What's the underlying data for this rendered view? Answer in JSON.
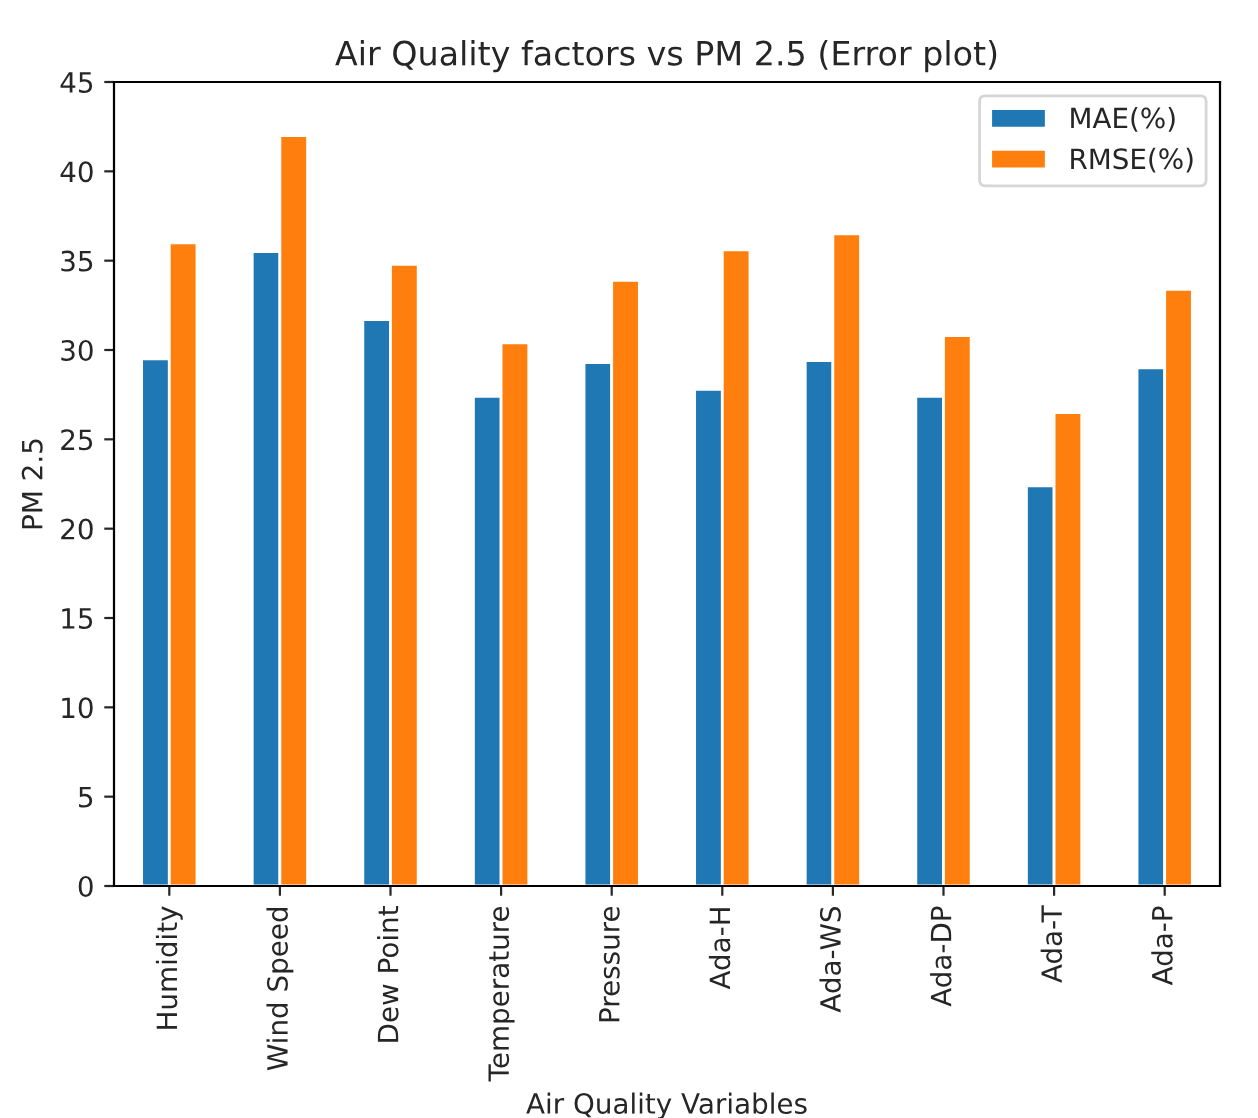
{
  "chart_data": {
    "type": "bar",
    "title": "Air Quality factors vs PM 2.5 (Error plot)",
    "xlabel": "Air Quality Variables",
    "ylabel": "PM 2.5",
    "categories": [
      "Humidity",
      "Wind Speed",
      "Dew Point",
      "Temperature",
      "Pressure",
      "Ada-H",
      "Ada-WS",
      "Ada-DP",
      "Ada-T",
      "Ada-P"
    ],
    "series": [
      {
        "name": "MAE(%)",
        "color": "#1f77b4",
        "values": [
          29.5,
          35.5,
          31.7,
          27.4,
          29.3,
          27.8,
          29.4,
          27.4,
          22.4,
          29.0
        ]
      },
      {
        "name": "RMSE(%)",
        "color": "#ff7f0e",
        "values": [
          36.0,
          42.0,
          34.8,
          30.4,
          33.9,
          35.6,
          36.5,
          30.8,
          26.5,
          33.4
        ]
      }
    ],
    "ylim": [
      0,
      45
    ],
    "yticks": [
      0,
      5,
      10,
      15,
      20,
      25,
      30,
      35,
      40,
      45
    ],
    "grid": false,
    "legend": "top right"
  }
}
